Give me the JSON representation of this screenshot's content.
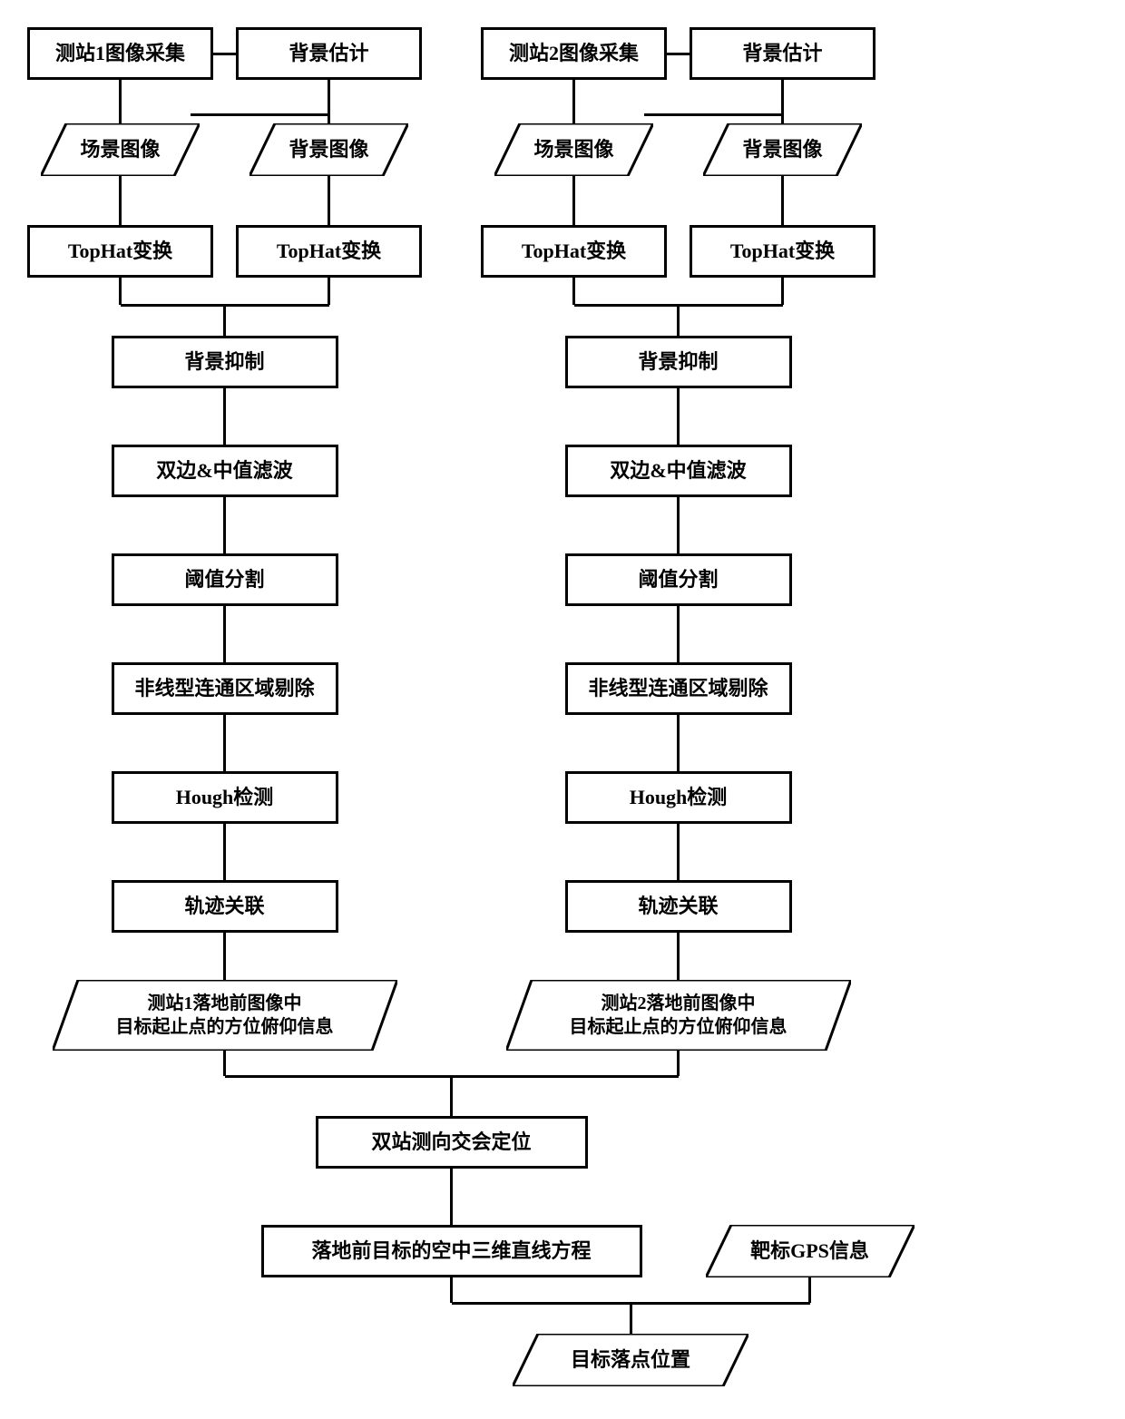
{
  "station1": {
    "top": {
      "acquire": "测站1图像采集",
      "bgEstimate": "背景估计"
    },
    "scene": "场景图像",
    "bgImage": "背景图像",
    "tophat1": "TopHat变换",
    "tophat2": "TopHat变换",
    "chain": {
      "bgSuppress": "背景抑制",
      "filter": "双边&中值滤波",
      "threshold": "阈值分割",
      "nonlinear": "非线型连通区域剔除",
      "hough": "Hough检测",
      "track": "轨迹关联"
    },
    "result": "测站1落地前图像中\n目标起止点的方位俯仰信息"
  },
  "station2": {
    "top": {
      "acquire": "测站2图像采集",
      "bgEstimate": "背景估计"
    },
    "scene": "场景图像",
    "bgImage": "背景图像",
    "tophat1": "TopHat变换",
    "tophat2": "TopHat变换",
    "chain": {
      "bgSuppress": "背景抑制",
      "filter": "双边&中值滤波",
      "threshold": "阈值分割",
      "nonlinear": "非线型连通区域剔除",
      "hough": "Hough检测",
      "track": "轨迹关联"
    },
    "result": "测站2落地前图像中\n目标起止点的方位俯仰信息"
  },
  "bottom": {
    "cross": "双站测向交会定位",
    "equation": "落地前目标的空中三维直线方程",
    "gps": "靶标GPS信息",
    "final": "目标落点位置"
  },
  "style": {
    "boxBorder": "#000000",
    "boxBg": "#ffffff",
    "lineWidth": 3,
    "boxH": 58,
    "paraH": 58,
    "fontSize": 22,
    "fontSizeSmall": 20,
    "rowY": {
      "r1": 30,
      "r2": 136,
      "r3": 248,
      "r4": 370,
      "r5": 490,
      "r6": 610,
      "r7": 730,
      "r8": 850,
      "r9": 970,
      "r10": 1080,
      "r11": 1230,
      "r12": 1350,
      "r13": 1470
    },
    "col": {
      "s1a": 30,
      "s1b": 260,
      "s1mid": 180,
      "s2a": 530,
      "s2b": 760,
      "s2mid": 680
    },
    "paraSkew": 28
  }
}
